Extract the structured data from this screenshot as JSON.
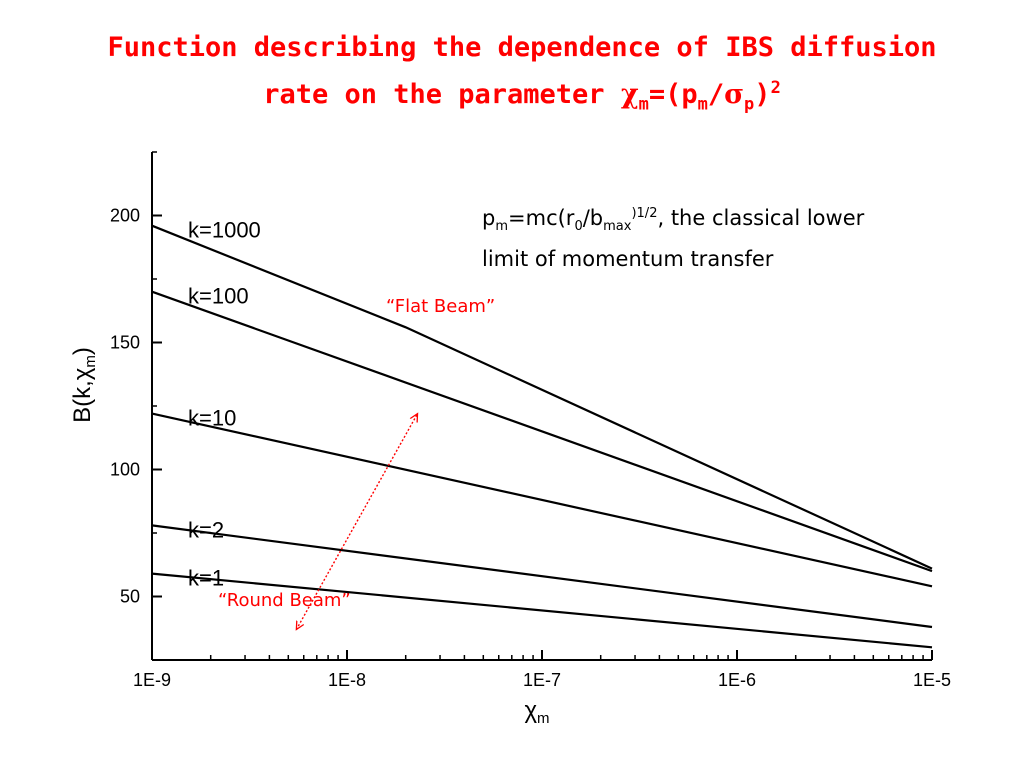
{
  "title": {
    "line1": "Function describing the dependence of IBS diffusion",
    "line2_prefix": "rate on the parameter ",
    "chi": "χ",
    "sub_m": "m",
    "mid": "=(p",
    "sub_m2": "m",
    "slash": "/",
    "sigma": "σ",
    "sub_p": "p",
    "close": ")",
    "sup_2": "2"
  },
  "note": {
    "p": "p",
    "sub_m": "m",
    "eq": "=mc(r",
    "sub_0": "0",
    "slash_b": "/b",
    "sub_max": "max",
    "sup_half": ")1/2",
    "rest_line1": ", the classical lower",
    "line2": "limit of momentum transfer"
  },
  "annotations": {
    "flat_beam": "“Flat Beam”",
    "round_beam": "“Round Beam”"
  },
  "axes": {
    "ylabel_base": "B(k,χ",
    "ylabel_sub": "m",
    "ylabel_close": ")",
    "xlabel_base": "χ",
    "xlabel_sub": "m"
  },
  "colors": {
    "title": "#ff0000",
    "annotation": "#ff0000",
    "lines": "#000000"
  },
  "chart_data": {
    "type": "line",
    "x_scale": "log",
    "xlim": [
      1e-09,
      1e-05
    ],
    "ylim": [
      25,
      225
    ],
    "x_ticks": [
      1e-09,
      1e-08,
      1e-07,
      1e-06,
      1e-05
    ],
    "x_tick_labels": [
      "1E-9",
      "1E-8",
      "1E-7",
      "1E-6",
      "1E-5"
    ],
    "y_ticks": [
      50,
      100,
      150,
      200
    ],
    "y_tick_labels": [
      "50",
      "100",
      "150",
      "200"
    ],
    "grid": false,
    "series": [
      {
        "name": "k=1000",
        "x": [
          1e-09,
          2e-08,
          1e-05
        ],
        "y": [
          196,
          156,
          61
        ]
      },
      {
        "name": "k=100",
        "x": [
          1e-09,
          1e-05
        ],
        "y": [
          170,
          60
        ]
      },
      {
        "name": "k=10",
        "x": [
          1e-09,
          1e-05
        ],
        "y": [
          122,
          54
        ]
      },
      {
        "name": "k=2",
        "x": [
          1e-09,
          1e-05
        ],
        "y": [
          78,
          38
        ]
      },
      {
        "name": "k=1",
        "x": [
          1e-09,
          1e-05
        ],
        "y": [
          59,
          30
        ]
      }
    ],
    "arrow": {
      "from": [
        5.5e-09,
        37
      ],
      "to": [
        2.3e-08,
        122
      ]
    }
  }
}
